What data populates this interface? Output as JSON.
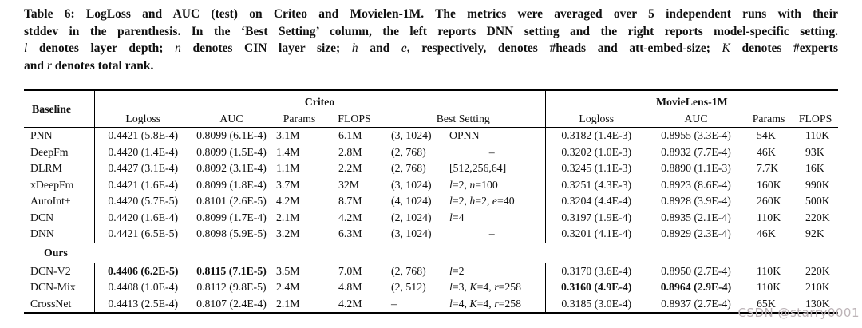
{
  "caption": {
    "lines": [
      [
        {
          "t": "Table 6: LogLoss and AUC (test) on Criteo and Movielen-1M. The metrics were averaged over 5 independent runs with their",
          "i": false
        }
      ],
      [
        {
          "t": "stddev in the parenthesis. In the ‘Best Setting’ column, the left reports DNN setting and the right reports model-specific setting.",
          "i": false
        }
      ],
      [
        {
          "t": "l",
          "i": true
        },
        {
          "t": " denotes layer depth; ",
          "i": false
        },
        {
          "t": "n",
          "i": true
        },
        {
          "t": " denotes CIN layer size; ",
          "i": false
        },
        {
          "t": "h",
          "i": true
        },
        {
          "t": " and ",
          "i": false
        },
        {
          "t": "e",
          "i": true
        },
        {
          "t": ", respectively, denotes #heads and att-embed-size; ",
          "i": false
        },
        {
          "t": "K",
          "i": true
        },
        {
          "t": " denotes #experts",
          "i": false
        }
      ],
      [
        {
          "t": "and ",
          "i": false
        },
        {
          "t": "r",
          "i": true
        },
        {
          "t": " denotes total rank.",
          "i": false
        }
      ]
    ]
  },
  "table": {
    "header": {
      "baseline": "Baseline",
      "criteo_group": "Criteo",
      "ml_group": "MovieLens-1M",
      "criteo_cols": [
        "Logloss",
        "AUC",
        "Params",
        "FLOPS",
        "Best Setting"
      ],
      "ml_cols": [
        "Logloss",
        "AUC",
        "Params",
        "FLOPS"
      ]
    },
    "rows": [
      {
        "type": "data",
        "name": "PNN",
        "c_logloss": "0.4421 (5.8E-4)",
        "c_auc": "0.8099 (6.1E-4)",
        "c_params": "3.1M",
        "c_flops": "6.1M",
        "set_dnn": "(3, 1024)",
        "set_model": "OPNN",
        "ml_logloss": "0.3182 (1.4E-3)",
        "ml_auc": "0.8955 (3.3E-4)",
        "ml_params": "54K",
        "ml_flops": "110K"
      },
      {
        "type": "data",
        "name": "DeepFm",
        "c_logloss": "0.4420 (1.4E-4)",
        "c_auc": "0.8099 (1.5E-4)",
        "c_params": "1.4M",
        "c_flops": "2.8M",
        "set_dnn": "(2, 768)",
        "set_model": "–",
        "ml_logloss": "0.3202 (1.0E-3)",
        "ml_auc": "0.8932 (7.7E-4)",
        "ml_params": "46K",
        "ml_flops": "93K"
      },
      {
        "type": "data",
        "name": "DLRM",
        "c_logloss": "0.4427 (3.1E-4)",
        "c_auc": "0.8092 (3.1E-4)",
        "c_params": "1.1M",
        "c_flops": "2.2M",
        "set_dnn": "(2, 768)",
        "set_model": "[512,256,64]",
        "ml_logloss": "0.3245 (1.1E-3)",
        "ml_auc": "0.8890 (1.1E-3)",
        "ml_params": "7.7K",
        "ml_flops": "16K"
      },
      {
        "type": "data",
        "name": "xDeepFm",
        "c_logloss": "0.4421 (1.6E-4)",
        "c_auc": "0.8099 (1.8E-4)",
        "c_params": "3.7M",
        "c_flops": "32M",
        "set_dnn": "(3, 1024)",
        "set_model": "l=2, n=100",
        "ml_logloss": "0.3251 (4.3E-3)",
        "ml_auc": "0.8923 (8.6E-4)",
        "ml_params": "160K",
        "ml_flops": "990K"
      },
      {
        "type": "data",
        "name": "AutoInt+",
        "c_logloss": "0.4420 (5.7E-5)",
        "c_auc": "0.8101 (2.6E-5)",
        "c_params": "4.2M",
        "c_flops": "8.7M",
        "set_dnn": "(4, 1024)",
        "set_model": "l=2, h=2, e=40",
        "ml_logloss": "0.3204 (4.4E-4)",
        "ml_auc": "0.8928 (3.9E-4)",
        "ml_params": "260K",
        "ml_flops": "500K"
      },
      {
        "type": "data",
        "name": "DCN",
        "c_logloss": "0.4420 (1.6E-4)",
        "c_auc": "0.8099 (1.7E-4)",
        "c_params": "2.1M",
        "c_flops": "4.2M",
        "set_dnn": "(2, 1024)",
        "set_model": "l=4",
        "ml_logloss": "0.3197 (1.9E-4)",
        "ml_auc": "0.8935 (2.1E-4)",
        "ml_params": "110K",
        "ml_flops": "220K"
      },
      {
        "type": "data",
        "name": "DNN",
        "c_logloss": "0.4421 (6.5E-5)",
        "c_auc": "0.8098 (5.9E-5)",
        "c_params": "3.2M",
        "c_flops": "6.3M",
        "set_dnn": "(3, 1024)",
        "set_model": "–",
        "ml_logloss": "0.3201 (4.1E-4)",
        "ml_auc": "0.8929 (2.3E-4)",
        "ml_params": "46K",
        "ml_flops": "92K"
      },
      {
        "type": "section",
        "label": "Ours"
      },
      {
        "type": "data",
        "name": "DCN-V2",
        "bold_criteo": true,
        "c_logloss": "0.4406 (6.2E-5)",
        "c_auc": "0.8115 (7.1E-5)",
        "c_params": "3.5M",
        "c_flops": "7.0M",
        "set_dnn": "(2, 768)",
        "set_model": "l=2",
        "ml_logloss": "0.3170 (3.6E-4)",
        "ml_auc": "0.8950 (2.7E-4)",
        "ml_params": "110K",
        "ml_flops": "220K"
      },
      {
        "type": "data",
        "name": "DCN-Mix",
        "bold_ml": true,
        "c_logloss": "0.4408 (1.0E-4)",
        "c_auc": "0.8112 (9.8E-5)",
        "c_params": "2.4M",
        "c_flops": "4.8M",
        "set_dnn": "(2, 512)",
        "set_model": "l=3, K=4, r=258",
        "ml_logloss": "0.3160 (4.9E-4)",
        "ml_auc": "0.8964 (2.9E-4)",
        "ml_params": "110K",
        "ml_flops": "210K"
      },
      {
        "type": "data",
        "name": "CrossNet",
        "c_logloss": "0.4413 (2.5E-4)",
        "c_auc": "0.8107 (2.4E-4)",
        "c_params": "2.1M",
        "c_flops": "4.2M",
        "set_dnn": "–",
        "set_model": "l=4, K=4, r=258",
        "ml_logloss": "0.3185 (3.0E-4)",
        "ml_auc": "0.8937 (2.7E-4)",
        "ml_params": "65K",
        "ml_flops": "130K"
      }
    ]
  },
  "watermark": "CSDN @starry0001",
  "colors": {
    "watermark": "#bdb4b8",
    "rule": "#000000",
    "text": "#111111"
  }
}
